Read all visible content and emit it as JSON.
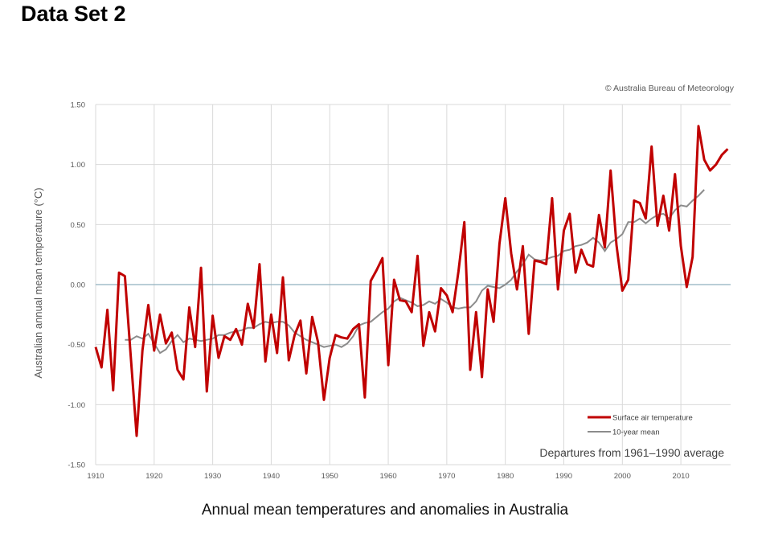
{
  "page": {
    "heading": "Data Set 2",
    "caption": "Annual mean temperatures and anomalies in Australia"
  },
  "chart_data": {
    "type": "line",
    "credit": "© Australia Bureau of Meteorology",
    "ylabel": "Australian annual mean temperature (°C)",
    "xlabel": "",
    "xlim": [
      1910,
      2018
    ],
    "ylim": [
      -1.5,
      1.5
    ],
    "xticks": [
      1910,
      1920,
      1930,
      1940,
      1950,
      1960,
      1970,
      1980,
      1990,
      2000,
      2010
    ],
    "yticks": [
      -1.5,
      -1.0,
      -0.5,
      0.0,
      0.5,
      1.0,
      1.5
    ],
    "ytick_labels": [
      "-1.50",
      "-1.00",
      "-0.50",
      "0.00",
      "0.50",
      "1.00",
      "1.50"
    ],
    "grid": "vertical lines at each x tick; horizontal lines at each y tick",
    "annotation": "Departures from 1961–1990 average",
    "legend_position": "bottom-right",
    "baseline": 0.0,
    "colors": {
      "surface": "#c00000",
      "mean": "#8c8c8c",
      "baseline": "#8fb0bf",
      "grid": "#d9d9d9"
    },
    "series": [
      {
        "name": "Surface air temperature",
        "color": "#c00000",
        "x": [
          1910,
          1911,
          1912,
          1913,
          1914,
          1915,
          1916,
          1917,
          1918,
          1919,
          1920,
          1921,
          1922,
          1923,
          1924,
          1925,
          1926,
          1927,
          1928,
          1929,
          1930,
          1931,
          1932,
          1933,
          1934,
          1935,
          1936,
          1937,
          1938,
          1939,
          1940,
          1941,
          1942,
          1943,
          1944,
          1945,
          1946,
          1947,
          1948,
          1949,
          1950,
          1951,
          1952,
          1953,
          1954,
          1955,
          1956,
          1957,
          1958,
          1959,
          1960,
          1961,
          1962,
          1963,
          1964,
          1965,
          1966,
          1967,
          1968,
          1969,
          1970,
          1971,
          1972,
          1973,
          1974,
          1975,
          1976,
          1977,
          1978,
          1979,
          1980,
          1981,
          1982,
          1983,
          1984,
          1985,
          1986,
          1987,
          1988,
          1989,
          1990,
          1991,
          1992,
          1993,
          1994,
          1995,
          1996,
          1997,
          1998,
          1999,
          2000,
          2001,
          2002,
          2003,
          2004,
          2005,
          2006,
          2007,
          2008,
          2009,
          2010,
          2011,
          2012,
          2013,
          2014,
          2015,
          2016,
          2017,
          2018
        ],
        "values": [
          -0.52,
          -0.69,
          -0.21,
          -0.88,
          0.1,
          0.07,
          -0.6,
          -1.26,
          -0.55,
          -0.17,
          -0.55,
          -0.25,
          -0.49,
          -0.4,
          -0.71,
          -0.79,
          -0.19,
          -0.52,
          0.14,
          -0.89,
          -0.26,
          -0.61,
          -0.43,
          -0.46,
          -0.37,
          -0.5,
          -0.16,
          -0.36,
          0.17,
          -0.64,
          -0.25,
          -0.57,
          0.06,
          -0.63,
          -0.42,
          -0.3,
          -0.74,
          -0.27,
          -0.48,
          -0.96,
          -0.61,
          -0.42,
          -0.44,
          -0.45,
          -0.37,
          -0.33,
          -0.94,
          0.03,
          0.12,
          0.22,
          -0.67,
          0.04,
          -0.13,
          -0.14,
          -0.23,
          0.24,
          -0.51,
          -0.23,
          -0.39,
          -0.03,
          -0.09,
          -0.23,
          0.11,
          0.52,
          -0.71,
          -0.23,
          -0.77,
          -0.04,
          -0.31,
          0.34,
          0.72,
          0.26,
          -0.04,
          0.32,
          -0.41,
          0.2,
          0.19,
          0.17,
          0.72,
          -0.04,
          0.45,
          0.59,
          0.1,
          0.29,
          0.17,
          0.15,
          0.58,
          0.31,
          0.95,
          0.33,
          -0.05,
          0.04,
          0.7,
          0.68,
          0.55,
          1.15,
          0.49,
          0.74,
          0.45,
          0.92,
          0.32,
          -0.02,
          0.23,
          1.32,
          1.04,
          0.95,
          1.0,
          1.08,
          1.13
        ]
      },
      {
        "name": "10-year mean",
        "color": "#8c8c8c",
        "x": [
          1915,
          1916,
          1917,
          1918,
          1919,
          1920,
          1921,
          1922,
          1923,
          1924,
          1925,
          1926,
          1927,
          1928,
          1929,
          1930,
          1931,
          1932,
          1933,
          1934,
          1935,
          1936,
          1937,
          1938,
          1939,
          1940,
          1941,
          1942,
          1943,
          1944,
          1945,
          1946,
          1947,
          1948,
          1949,
          1950,
          1951,
          1952,
          1953,
          1954,
          1955,
          1956,
          1957,
          1958,
          1959,
          1960,
          1961,
          1962,
          1963,
          1964,
          1965,
          1966,
          1967,
          1968,
          1969,
          1970,
          1971,
          1972,
          1973,
          1974,
          1975,
          1976,
          1977,
          1978,
          1979,
          1980,
          1981,
          1982,
          1983,
          1984,
          1985,
          1986,
          1987,
          1988,
          1989,
          1990,
          1991,
          1992,
          1993,
          1994,
          1995,
          1996,
          1997,
          1998,
          1999,
          2000,
          2001,
          2002,
          2003,
          2004,
          2005,
          2006,
          2007,
          2008,
          2009,
          2010,
          2011,
          2012,
          2013,
          2014
        ],
        "values": [
          -0.46,
          -0.46,
          -0.43,
          -0.45,
          -0.41,
          -0.49,
          -0.57,
          -0.54,
          -0.47,
          -0.42,
          -0.48,
          -0.45,
          -0.46,
          -0.47,
          -0.46,
          -0.45,
          -0.42,
          -0.42,
          -0.4,
          -0.39,
          -0.38,
          -0.36,
          -0.36,
          -0.33,
          -0.31,
          -0.32,
          -0.31,
          -0.31,
          -0.34,
          -0.4,
          -0.43,
          -0.46,
          -0.48,
          -0.5,
          -0.52,
          -0.51,
          -0.5,
          -0.52,
          -0.49,
          -0.43,
          -0.34,
          -0.32,
          -0.31,
          -0.27,
          -0.23,
          -0.2,
          -0.14,
          -0.11,
          -0.13,
          -0.15,
          -0.18,
          -0.17,
          -0.14,
          -0.16,
          -0.12,
          -0.15,
          -0.19,
          -0.2,
          -0.19,
          -0.19,
          -0.14,
          -0.05,
          -0.01,
          -0.02,
          -0.03,
          0.0,
          0.04,
          0.11,
          0.17,
          0.25,
          0.21,
          0.2,
          0.21,
          0.23,
          0.24,
          0.28,
          0.29,
          0.32,
          0.33,
          0.35,
          0.39,
          0.35,
          0.28,
          0.35,
          0.38,
          0.42,
          0.52,
          0.52,
          0.55,
          0.51,
          0.55,
          0.58,
          0.59,
          0.55,
          0.62,
          0.66,
          0.65,
          0.7,
          0.74,
          0.79
        ]
      }
    ]
  }
}
